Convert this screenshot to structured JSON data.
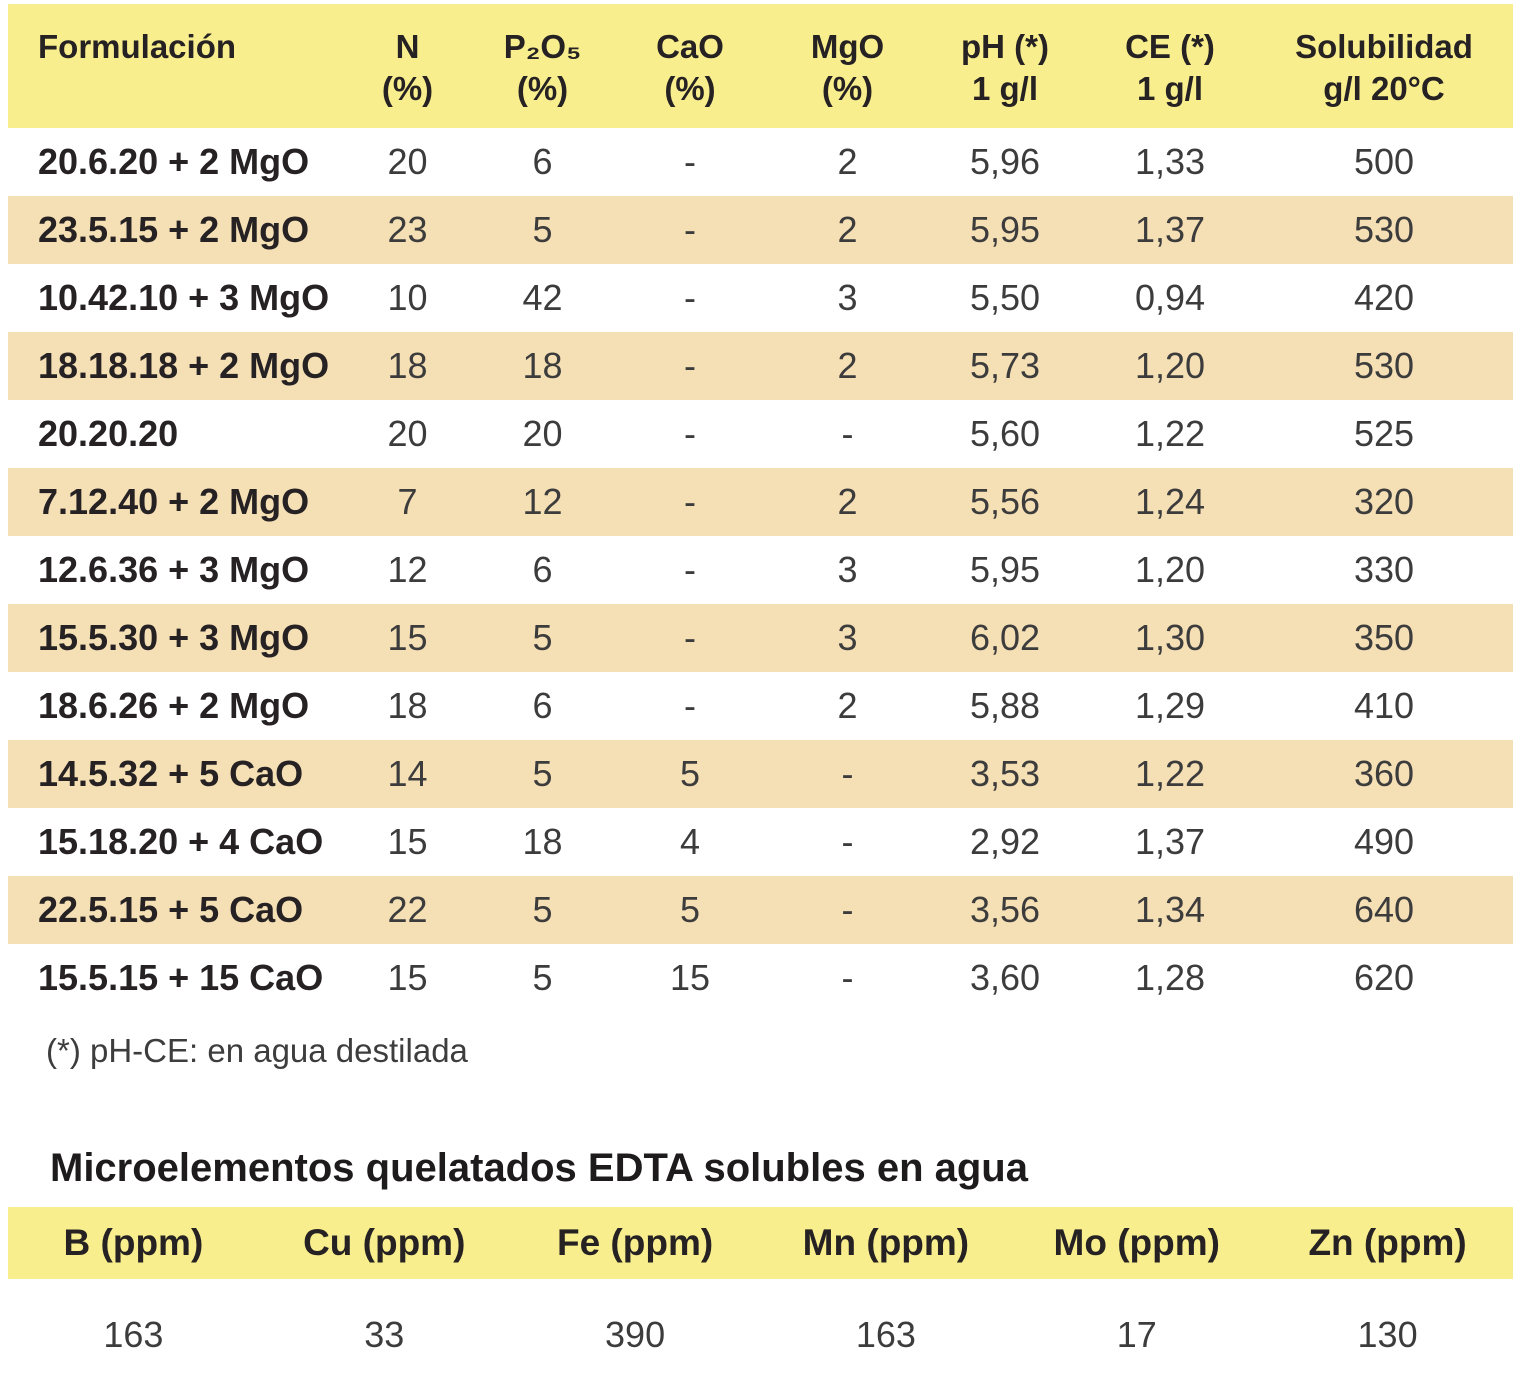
{
  "main_table": {
    "columns": [
      {
        "line1": "Formulación",
        "line2": ""
      },
      {
        "line1": "N",
        "line2": "(%)"
      },
      {
        "line1": "P₂O₅",
        "line2": "(%)"
      },
      {
        "line1": "CaO",
        "line2": "(%)"
      },
      {
        "line1": "MgO",
        "line2": "(%)"
      },
      {
        "line1": "pH (*)",
        "line2": "1 g/l"
      },
      {
        "line1": "CE (*)",
        "line2": "1 g/l"
      },
      {
        "line1": "Solubilidad",
        "line2": "g/l 20°C"
      }
    ],
    "rows": [
      {
        "formulation": "20.6.20 + 2 MgO",
        "n": "20",
        "p2o5": "6",
        "cao": "-",
        "mgo": "2",
        "ph": "5,96",
        "ce": "1,33",
        "solubility": "500"
      },
      {
        "formulation": "23.5.15 + 2 MgO",
        "n": "23",
        "p2o5": "5",
        "cao": "-",
        "mgo": "2",
        "ph": "5,95",
        "ce": "1,37",
        "solubility": "530"
      },
      {
        "formulation": "10.42.10 + 3 MgO",
        "n": "10",
        "p2o5": "42",
        "cao": "-",
        "mgo": "3",
        "ph": "5,50",
        "ce": "0,94",
        "solubility": "420"
      },
      {
        "formulation": "18.18.18 + 2 MgO",
        "n": "18",
        "p2o5": "18",
        "cao": "-",
        "mgo": "2",
        "ph": "5,73",
        "ce": "1,20",
        "solubility": "530"
      },
      {
        "formulation": "20.20.20",
        "n": "20",
        "p2o5": "20",
        "cao": "-",
        "mgo": "-",
        "ph": "5,60",
        "ce": "1,22",
        "solubility": "525"
      },
      {
        "formulation": "7.12.40 + 2 MgO",
        "n": "7",
        "p2o5": "12",
        "cao": "-",
        "mgo": "2",
        "ph": "5,56",
        "ce": "1,24",
        "solubility": "320"
      },
      {
        "formulation": "12.6.36 + 3 MgO",
        "n": "12",
        "p2o5": "6",
        "cao": "-",
        "mgo": "3",
        "ph": "5,95",
        "ce": "1,20",
        "solubility": "330"
      },
      {
        "formulation": "15.5.30 + 3 MgO",
        "n": "15",
        "p2o5": "5",
        "cao": "-",
        "mgo": "3",
        "ph": "6,02",
        "ce": "1,30",
        "solubility": "350"
      },
      {
        "formulation": "18.6.26 + 2 MgO",
        "n": "18",
        "p2o5": "6",
        "cao": "-",
        "mgo": "2",
        "ph": "5,88",
        "ce": "1,29",
        "solubility": "410"
      },
      {
        "formulation": "14.5.32 + 5 CaO",
        "n": "14",
        "p2o5": "5",
        "cao": "5",
        "mgo": "-",
        "ph": "3,53",
        "ce": "1,22",
        "solubility": "360"
      },
      {
        "formulation": "15.18.20 + 4 CaO",
        "n": "15",
        "p2o5": "18",
        "cao": "4",
        "mgo": "-",
        "ph": "2,92",
        "ce": "1,37",
        "solubility": "490"
      },
      {
        "formulation": "22.5.15 + 5 CaO",
        "n": "22",
        "p2o5": "5",
        "cao": "5",
        "mgo": "-",
        "ph": "3,56",
        "ce": "1,34",
        "solubility": "640"
      },
      {
        "formulation": "15.5.15 + 15 CaO",
        "n": "15",
        "p2o5": "5",
        "cao": "15",
        "mgo": "-",
        "ph": "3,60",
        "ce": "1,28",
        "solubility": "620"
      }
    ]
  },
  "footnote": "(*) pH-CE: en agua destilada",
  "micro_section": {
    "title": "Microelementos quelatados EDTA solubles en agua",
    "columns": [
      "B (ppm)",
      "Cu (ppm)",
      "Fe (ppm)",
      "Mn (ppm)",
      "Mo (ppm)",
      "Zn (ppm)"
    ],
    "values": [
      "163",
      "33",
      "390",
      "163",
      "17",
      "130"
    ]
  },
  "colors": {
    "header_yellow": "#F8EE8D",
    "row_tan": "#F5DFB5",
    "text_dark": "#262223",
    "text_number": "#3C3C3C"
  }
}
